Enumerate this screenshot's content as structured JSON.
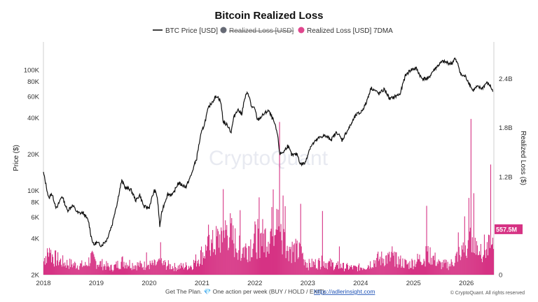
{
  "chart_data": {
    "type": "line",
    "title": "Bitcoin Realized Loss",
    "legend": [
      {
        "label": "BTC Price [USD]",
        "color": "#111111",
        "style": "line",
        "struck": false
      },
      {
        "label": "Realized Loss [USD]",
        "color": "#666a75",
        "style": "dot",
        "struck": true
      },
      {
        "label": "Realized Loss [USD] 7DMA",
        "color": "#e0478e",
        "style": "dot",
        "struck": false
      }
    ],
    "legend_position": "top-center",
    "ylabel_left": "Price ($)",
    "ylabel_right": "Realized Loss ($)",
    "y_left_scale": "log",
    "y_left_range": [
      2000,
      170000
    ],
    "y_left_ticks": [
      {
        "value": 2000,
        "label": "2K"
      },
      {
        "value": 4000,
        "label": "4K"
      },
      {
        "value": 6000,
        "label": "6K"
      },
      {
        "value": 8000,
        "label": "8K"
      },
      {
        "value": 10000,
        "label": "10K"
      },
      {
        "value": 20000,
        "label": "20K"
      },
      {
        "value": 40000,
        "label": "40K"
      },
      {
        "value": 60000,
        "label": "60K"
      },
      {
        "value": 80000,
        "label": "80K"
      },
      {
        "value": 100000,
        "label": "100K"
      }
    ],
    "y_right_range": [
      0,
      2850000000
    ],
    "y_right_ticks": [
      {
        "value": 0,
        "label": "0"
      },
      {
        "value": 1200000000,
        "label": "1.2B"
      },
      {
        "value": 1800000000,
        "label": "1.8B"
      },
      {
        "value": 2400000000,
        "label": "2.4B"
      }
    ],
    "x_range": [
      2018.0,
      2026.52
    ],
    "x_ticks": [
      {
        "value": 2018,
        "label": "2018"
      },
      {
        "value": 2019,
        "label": "2019"
      },
      {
        "value": 2020,
        "label": "2020"
      },
      {
        "value": 2021,
        "label": "2021"
      },
      {
        "value": 2022,
        "label": "2022"
      },
      {
        "value": 2023,
        "label": "2023"
      },
      {
        "value": 2024,
        "label": "2024"
      },
      {
        "value": 2025,
        "label": "2025"
      },
      {
        "value": 2026,
        "label": "2026"
      }
    ],
    "last_value_label": "557.5M",
    "last_value": 557500000,
    "series": [
      {
        "name": "BTC Price [USD]",
        "color": "#111111",
        "points": [
          [
            2018.0,
            14000
          ],
          [
            2018.05,
            11000
          ],
          [
            2018.1,
            8500
          ],
          [
            2018.15,
            9500
          ],
          [
            2018.25,
            7000
          ],
          [
            2018.35,
            9000
          ],
          [
            2018.45,
            6800
          ],
          [
            2018.55,
            7500
          ],
          [
            2018.65,
            6500
          ],
          [
            2018.75,
            6500
          ],
          [
            2018.85,
            5600
          ],
          [
            2018.9,
            4200
          ],
          [
            2018.95,
            3500
          ],
          [
            2019.0,
            3700
          ],
          [
            2019.1,
            3500
          ],
          [
            2019.2,
            3900
          ],
          [
            2019.3,
            5200
          ],
          [
            2019.4,
            8000
          ],
          [
            2019.48,
            12000
          ],
          [
            2019.55,
            10500
          ],
          [
            2019.65,
            10200
          ],
          [
            2019.75,
            8200
          ],
          [
            2019.82,
            9200
          ],
          [
            2019.9,
            7300
          ],
          [
            2020.0,
            7200
          ],
          [
            2020.1,
            10000
          ],
          [
            2020.15,
            9000
          ],
          [
            2020.2,
            5000
          ],
          [
            2020.25,
            6900
          ],
          [
            2020.35,
            9300
          ],
          [
            2020.45,
            9200
          ],
          [
            2020.55,
            11500
          ],
          [
            2020.7,
            10700
          ],
          [
            2020.8,
            13500
          ],
          [
            2020.9,
            18500
          ],
          [
            2020.98,
            29000
          ],
          [
            2021.05,
            36000
          ],
          [
            2021.12,
            48000
          ],
          [
            2021.2,
            55000
          ],
          [
            2021.28,
            61000
          ],
          [
            2021.35,
            55000
          ],
          [
            2021.4,
            37000
          ],
          [
            2021.5,
            34000
          ],
          [
            2021.55,
            30000
          ],
          [
            2021.6,
            40000
          ],
          [
            2021.67,
            47000
          ],
          [
            2021.75,
            43000
          ],
          [
            2021.82,
            60000
          ],
          [
            2021.87,
            65000
          ],
          [
            2021.93,
            50000
          ],
          [
            2022.0,
            47000
          ],
          [
            2022.05,
            38000
          ],
          [
            2022.15,
            42000
          ],
          [
            2022.25,
            46000
          ],
          [
            2022.35,
            38000
          ],
          [
            2022.42,
            30000
          ],
          [
            2022.47,
            20000
          ],
          [
            2022.55,
            21000
          ],
          [
            2022.62,
            23500
          ],
          [
            2022.7,
            19500
          ],
          [
            2022.8,
            20000
          ],
          [
            2022.86,
            16500
          ],
          [
            2022.95,
            16800
          ],
          [
            2023.05,
            23000
          ],
          [
            2023.2,
            27000
          ],
          [
            2023.3,
            28500
          ],
          [
            2023.45,
            26500
          ],
          [
            2023.55,
            30500
          ],
          [
            2023.65,
            26000
          ],
          [
            2023.8,
            34000
          ],
          [
            2023.92,
            42500
          ],
          [
            2024.0,
            44000
          ],
          [
            2024.1,
            52000
          ],
          [
            2024.2,
            71000
          ],
          [
            2024.35,
            63000
          ],
          [
            2024.45,
            69000
          ],
          [
            2024.55,
            57000
          ],
          [
            2024.65,
            60000
          ],
          [
            2024.75,
            63000
          ],
          [
            2024.85,
            90000
          ],
          [
            2024.95,
            100000
          ],
          [
            2025.05,
            103000
          ],
          [
            2025.15,
            85000
          ],
          [
            2025.28,
            84000
          ],
          [
            2025.35,
            95000
          ],
          [
            2025.45,
            107000
          ],
          [
            2025.55,
            117000
          ],
          [
            2025.62,
            115000
          ],
          [
            2025.72,
            112000
          ],
          [
            2025.78,
            124000
          ],
          [
            2025.85,
            108000
          ],
          [
            2025.9,
            90000
          ],
          [
            2025.98,
            88000
          ],
          [
            2026.05,
            78000
          ],
          [
            2026.12,
            67000
          ],
          [
            2026.2,
            72000
          ],
          [
            2026.3,
            70000
          ],
          [
            2026.38,
            78000
          ],
          [
            2026.45,
            74000
          ],
          [
            2026.5,
            66000
          ]
        ]
      },
      {
        "name": "Realized Loss [USD] 7DMA",
        "color": "#d63384",
        "base": [
          [
            2018.0,
            150000000
          ],
          [
            2018.08,
            300000000
          ],
          [
            2018.2,
            200000000
          ],
          [
            2018.4,
            140000000
          ],
          [
            2018.6,
            120000000
          ],
          [
            2018.8,
            110000000
          ],
          [
            2018.9,
            200000000
          ],
          [
            2019.0,
            150000000
          ],
          [
            2019.3,
            80000000
          ],
          [
            2019.5,
            160000000
          ],
          [
            2019.7,
            120000000
          ],
          [
            2019.9,
            110000000
          ],
          [
            2020.1,
            120000000
          ],
          [
            2020.25,
            130000000
          ],
          [
            2020.5,
            90000000
          ],
          [
            2020.8,
            110000000
          ],
          [
            2021.0,
            250000000
          ],
          [
            2021.2,
            350000000
          ],
          [
            2021.35,
            450000000
          ],
          [
            2021.5,
            550000000
          ],
          [
            2021.6,
            400000000
          ],
          [
            2021.8,
            300000000
          ],
          [
            2022.0,
            420000000
          ],
          [
            2022.2,
            450000000
          ],
          [
            2022.4,
            600000000
          ],
          [
            2022.5,
            450000000
          ],
          [
            2022.7,
            300000000
          ],
          [
            2022.9,
            250000000
          ],
          [
            2023.0,
            120000000
          ],
          [
            2023.3,
            150000000
          ],
          [
            2023.6,
            100000000
          ],
          [
            2023.9,
            80000000
          ],
          [
            2024.1,
            100000000
          ],
          [
            2024.3,
            180000000
          ],
          [
            2024.5,
            200000000
          ],
          [
            2024.7,
            170000000
          ],
          [
            2024.9,
            120000000
          ],
          [
            2025.1,
            180000000
          ],
          [
            2025.3,
            250000000
          ],
          [
            2025.5,
            120000000
          ],
          [
            2025.7,
            120000000
          ],
          [
            2025.9,
            280000000
          ],
          [
            2026.1,
            350000000
          ],
          [
            2026.3,
            320000000
          ],
          [
            2026.52,
            300000000
          ]
        ],
        "spikes": [
          [
            2018.08,
            520000000
          ],
          [
            2019.95,
            280000000
          ],
          [
            2020.22,
            560000000
          ],
          [
            2021.12,
            720000000
          ],
          [
            2021.4,
            1180000000
          ],
          [
            2021.72,
            850000000
          ],
          [
            2022.08,
            970000000
          ],
          [
            2022.35,
            1470000000
          ],
          [
            2022.47,
            2690000000
          ],
          [
            2022.53,
            1280000000
          ],
          [
            2022.57,
            1100000000
          ],
          [
            2022.87,
            1350000000
          ],
          [
            2023.28,
            900000000
          ],
          [
            2023.6,
            420000000
          ],
          [
            2024.6,
            500000000
          ],
          [
            2025.25,
            950000000
          ],
          [
            2025.85,
            640000000
          ],
          [
            2025.97,
            900000000
          ],
          [
            2026.05,
            1200000000
          ],
          [
            2026.09,
            2450000000
          ],
          [
            2026.14,
            1050000000
          ],
          [
            2026.46,
            1360000000
          ]
        ]
      }
    ]
  },
  "watermark": "CryptoQuant",
  "footer": {
    "text": "Get The Plan. 💎 One action per week (BUY / HOLD / EXIT).",
    "link": "https://adlerinsight.com",
    "copyright": "© CryptoQuant. All rights reserved"
  }
}
